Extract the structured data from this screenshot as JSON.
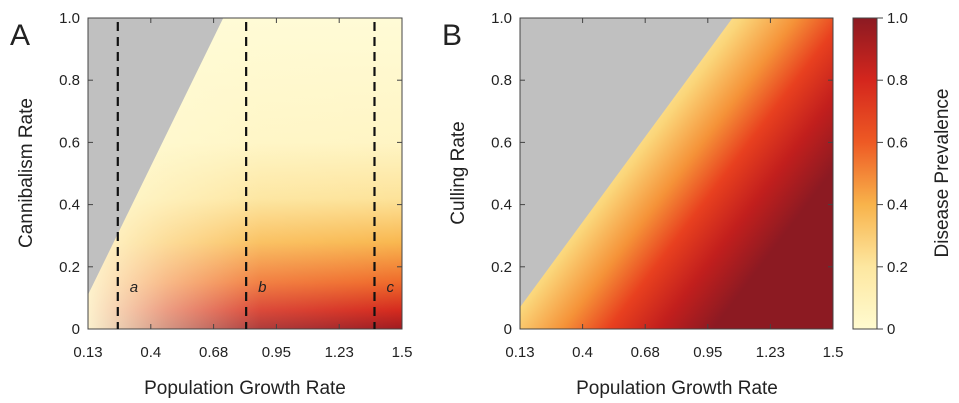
{
  "chart_data": [
    {
      "type": "heatmap",
      "panel_label": "A",
      "xlabel": "Population Growth Rate",
      "ylabel": "Cannibalism Rate",
      "xlim": [
        0.13,
        1.5
      ],
      "ylim": [
        0,
        1.0
      ],
      "x_ticks": [
        "0.13",
        "0.4",
        "0.68",
        "0.95",
        "1.23",
        "1.5"
      ],
      "y_ticks": [
        "0",
        "0.2",
        "0.4",
        "0.6",
        "0.8",
        "1.0"
      ],
      "no_data_color": "#c0c0c0",
      "no_data_boundary": [
        [
          0.13,
          0.11
        ],
        [
          0.72,
          1.0
        ]
      ],
      "vertical_lines": [
        {
          "label": "a",
          "x": 0.26
        },
        {
          "label": "b",
          "x": 0.82
        },
        {
          "label": "c",
          "x": 1.38
        }
      ]
    },
    {
      "type": "heatmap",
      "panel_label": "B",
      "xlabel": "Population Growth Rate",
      "ylabel": "Culling Rate",
      "xlim": [
        0.13,
        1.5
      ],
      "ylim": [
        0,
        1.0
      ],
      "x_ticks": [
        "0.13",
        "0.4",
        "0.68",
        "0.95",
        "1.23",
        "1.5"
      ],
      "y_ticks": [
        "0",
        "0.2",
        "0.4",
        "0.6",
        "0.8",
        "1.0"
      ],
      "no_data_color": "#c0c0c0",
      "no_data_boundary": [
        [
          0.13,
          0.07
        ],
        [
          1.06,
          1.0
        ]
      ],
      "colorbar": {
        "label": "Disease Prevalence",
        "range": [
          0,
          1.0
        ],
        "ticks": [
          "0",
          "0.2",
          "0.4",
          "0.6",
          "0.8",
          "1.0"
        ],
        "colors": [
          "#fffbd0",
          "#fde7a0",
          "#f8b34b",
          "#ee5a24",
          "#d4261d",
          "#8c1a22"
        ]
      }
    }
  ]
}
